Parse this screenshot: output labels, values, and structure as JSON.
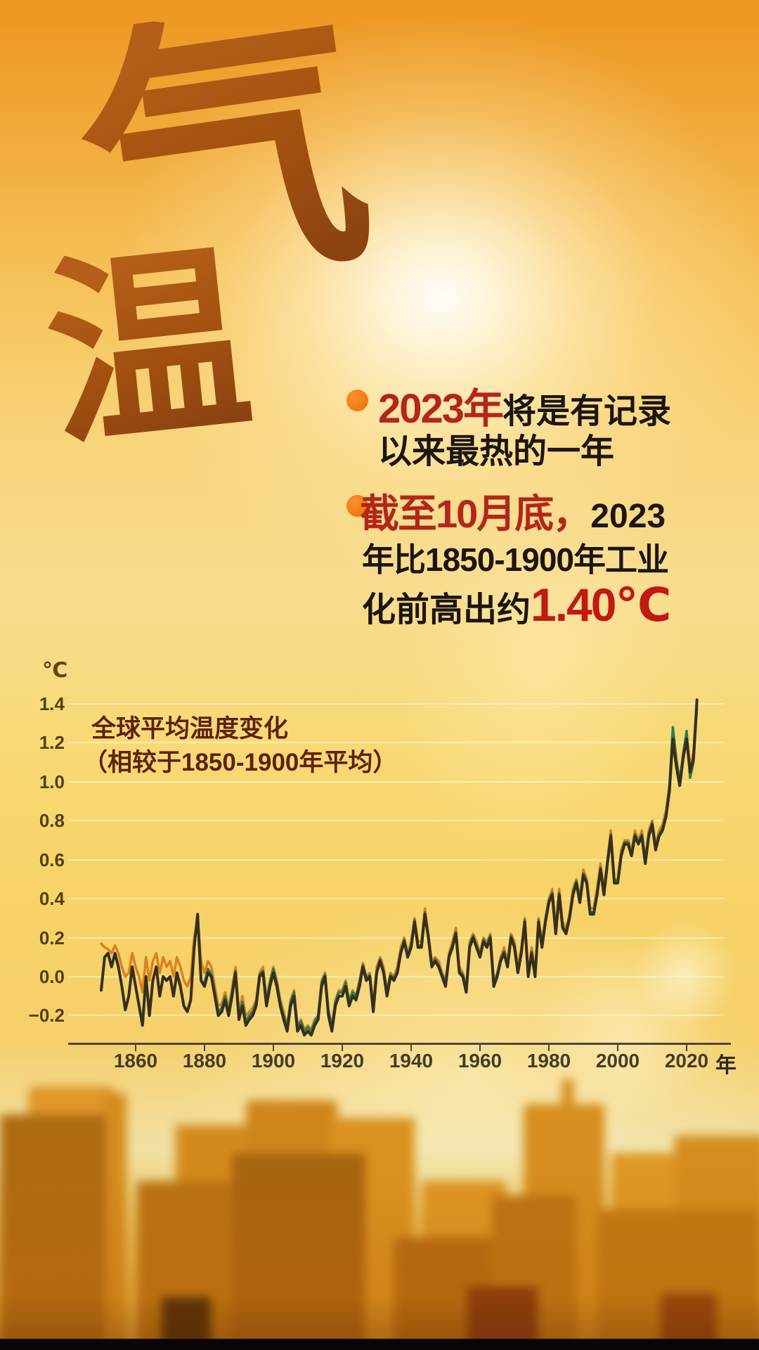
{
  "poster": {
    "calligraphy": {
      "char_top": "气",
      "char_bottom": "温"
    },
    "accent_colors": {
      "bullet_dot": "#f17812",
      "red_text": "#b3261b",
      "black_text": "#1c1611",
      "highlight_red": "#c11a12"
    },
    "bullets": {
      "b1_red": "2023年",
      "b1_black": "将是有记录",
      "b1_line2": "以来最热的一年",
      "b2_red": "截至10月底，",
      "b2_black": "2023",
      "b2_line2": "年比1850-1900年工业",
      "b2_line3_black": "化前高出约",
      "b2_line3_red": "1.40℃"
    }
  },
  "chart_data": {
    "type": "line",
    "title": "全球平均温度变化",
    "subtitle": "（相较于1850-1900年平均）",
    "unit_label": "℃",
    "x_axis_suffix": "年",
    "ylim": [
      -0.34,
      1.45
    ],
    "grid": true,
    "yticks": [
      1.4,
      1.2,
      1.0,
      0.8,
      0.6,
      0.4,
      0.2,
      0.0,
      -0.2
    ],
    "ytick_labels": [
      "1.4",
      "1.2",
      "1.0",
      "0.8",
      "0.6",
      "0.4",
      "0.2",
      "0.0",
      "−0.2"
    ],
    "xticks": [
      1860,
      1880,
      1900,
      1920,
      1940,
      1960,
      1980,
      2000,
      2020
    ],
    "series": [
      {
        "name": "dataset-orange",
        "color": "#d9821f",
        "width": 3.5,
        "start_year": 1850,
        "values": [
          0.17,
          0.15,
          0.14,
          0.12,
          0.16,
          0.12,
          0.05,
          0.0,
          0.02,
          0.12,
          0.05,
          0.0,
          -0.08,
          0.1,
          -0.02,
          0.08,
          0.12,
          0.02,
          0.1,
          0.05,
          0.08,
          0.0,
          0.1,
          0.05,
          -0.02,
          -0.05,
          0.0,
          0.2,
          0.3,
          0.08,
          0.02,
          0.08,
          0.05,
          -0.05,
          -0.15,
          -0.14,
          -0.08,
          -0.16,
          -0.06,
          0.05,
          -0.18,
          -0.1,
          -0.2,
          -0.18,
          -0.16,
          -0.12,
          0.02,
          0.05,
          -0.12,
          -0.02,
          0.05,
          -0.02,
          -0.12,
          -0.18,
          -0.25,
          -0.12,
          -0.07,
          -0.25,
          -0.22,
          -0.27,
          -0.25,
          -0.27,
          -0.22,
          -0.2,
          -0.02,
          0.02,
          -0.17,
          -0.25,
          -0.12,
          -0.07,
          -0.07,
          -0.02,
          -0.12,
          -0.07,
          -0.1,
          -0.02,
          0.07,
          0.0,
          0.02,
          -0.15,
          0.05,
          0.1,
          0.05,
          -0.07,
          0.02,
          0.0,
          0.05,
          0.15,
          0.2,
          0.12,
          0.18,
          0.3,
          0.18,
          0.18,
          0.35,
          0.22,
          0.08,
          0.1,
          0.08,
          0.02,
          -0.02,
          0.12,
          0.18,
          0.25,
          0.05,
          0.02,
          -0.05,
          0.18,
          0.22,
          0.18,
          0.12,
          0.2,
          0.18,
          0.22,
          -0.02,
          0.02,
          0.1,
          0.15,
          0.08,
          0.22,
          0.18,
          0.05,
          0.15,
          0.3,
          0.02,
          0.15,
          0.02,
          0.3,
          0.18,
          0.3,
          0.4,
          0.45,
          0.25,
          0.45,
          0.28,
          0.25,
          0.32,
          0.45,
          0.5,
          0.4,
          0.55,
          0.5,
          0.35,
          0.35,
          0.45,
          0.58,
          0.45,
          0.6,
          0.75,
          0.5,
          0.5,
          0.65,
          0.7,
          0.7,
          0.65,
          0.75,
          0.7,
          0.75,
          0.6,
          0.75,
          0.8,
          0.68,
          0.75,
          0.78,
          0.85,
          0.98,
          1.25,
          1.1,
          1.0,
          1.15,
          1.25,
          1.08,
          1.15,
          1.4
        ]
      },
      {
        "name": "dataset-green",
        "color": "#2e7d4f",
        "width": 3.5,
        "start_year": 1880,
        "values": [
          -0.03,
          0.04,
          0.01,
          -0.08,
          -0.18,
          -0.16,
          -0.1,
          -0.18,
          -0.08,
          0.03,
          -0.2,
          -0.13,
          -0.23,
          -0.2,
          -0.18,
          -0.13,
          0.01,
          0.03,
          -0.13,
          -0.03,
          0.04,
          -0.03,
          -0.13,
          -0.2,
          -0.26,
          -0.13,
          -0.08,
          -0.26,
          -0.23,
          -0.28,
          -0.26,
          -0.28,
          -0.23,
          -0.2,
          -0.03,
          0.01,
          -0.18,
          -0.26,
          -0.13,
          -0.08,
          -0.08,
          -0.03,
          -0.13,
          -0.08,
          -0.1,
          -0.03,
          0.06,
          -0.01,
          0.01,
          -0.16,
          0.03,
          0.09,
          0.03,
          -0.08,
          0.01,
          -0.01,
          0.03,
          0.13,
          0.19,
          0.11,
          0.16,
          0.29,
          0.16,
          0.16,
          0.33,
          0.21,
          0.06,
          0.09,
          0.06,
          0.01,
          -0.03,
          0.11,
          0.16,
          0.23,
          0.03,
          0.01,
          -0.06,
          0.16,
          0.21,
          0.16,
          0.11,
          0.19,
          0.16,
          0.21,
          -0.03,
          0.01,
          0.09,
          0.13,
          0.06,
          0.21,
          0.16,
          0.03,
          0.13,
          0.29,
          0.01,
          0.13,
          0.01,
          0.29,
          0.16,
          0.29,
          0.39,
          0.43,
          0.23,
          0.43,
          0.26,
          0.23,
          0.31,
          0.43,
          0.49,
          0.39,
          0.53,
          0.49,
          0.33,
          0.33,
          0.43,
          0.56,
          0.43,
          0.59,
          0.73,
          0.49,
          0.49,
          0.63,
          0.69,
          0.69,
          0.63,
          0.73,
          0.69,
          0.73,
          0.59,
          0.73,
          0.79,
          0.66,
          0.73,
          0.76,
          0.83,
          0.97,
          1.28,
          1.12,
          1.0,
          1.14,
          1.26,
          1.02,
          1.1,
          1.38
        ]
      },
      {
        "name": "dataset-dark",
        "color": "#35301d",
        "width": 4,
        "start_year": 1850,
        "values": [
          -0.07,
          0.1,
          0.12,
          0.05,
          0.12,
          0.05,
          -0.05,
          -0.17,
          -0.1,
          0.05,
          -0.05,
          -0.15,
          -0.25,
          0.0,
          -0.2,
          -0.02,
          0.05,
          -0.1,
          0.0,
          -0.02,
          0.0,
          -0.1,
          0.02,
          -0.05,
          -0.15,
          -0.18,
          -0.12,
          0.15,
          0.32,
          -0.02,
          -0.05,
          0.02,
          0.0,
          -0.1,
          -0.2,
          -0.18,
          -0.12,
          -0.2,
          -0.1,
          0.02,
          -0.22,
          -0.15,
          -0.25,
          -0.22,
          -0.2,
          -0.15,
          0.0,
          0.02,
          -0.15,
          -0.05,
          0.02,
          -0.05,
          -0.15,
          -0.22,
          -0.28,
          -0.15,
          -0.1,
          -0.28,
          -0.25,
          -0.3,
          -0.28,
          -0.3,
          -0.25,
          -0.22,
          -0.05,
          0.0,
          -0.2,
          -0.28,
          -0.15,
          -0.1,
          -0.1,
          -0.05,
          -0.15,
          -0.1,
          -0.12,
          -0.05,
          0.05,
          -0.02,
          0.0,
          -0.18,
          0.02,
          0.08,
          0.02,
          -0.1,
          0.0,
          -0.02,
          0.02,
          0.12,
          0.18,
          0.1,
          0.15,
          0.28,
          0.15,
          0.15,
          0.32,
          0.2,
          0.05,
          0.08,
          0.05,
          0.0,
          -0.05,
          0.1,
          0.15,
          0.22,
          0.02,
          0.0,
          -0.08,
          0.15,
          0.2,
          0.15,
          0.1,
          0.18,
          0.15,
          0.2,
          -0.05,
          0.0,
          0.08,
          0.12,
          0.05,
          0.2,
          0.15,
          0.02,
          0.12,
          0.28,
          0.0,
          0.12,
          0.0,
          0.28,
          0.15,
          0.28,
          0.38,
          0.42,
          0.22,
          0.42,
          0.25,
          0.22,
          0.3,
          0.42,
          0.48,
          0.38,
          0.52,
          0.48,
          0.32,
          0.32,
          0.42,
          0.55,
          0.42,
          0.58,
          0.72,
          0.48,
          0.48,
          0.62,
          0.68,
          0.68,
          0.62,
          0.72,
          0.68,
          0.72,
          0.58,
          0.72,
          0.78,
          0.65,
          0.72,
          0.75,
          0.82,
          0.95,
          1.22,
          1.08,
          0.98,
          1.12,
          1.22,
          1.05,
          1.12,
          1.42
        ]
      }
    ]
  }
}
